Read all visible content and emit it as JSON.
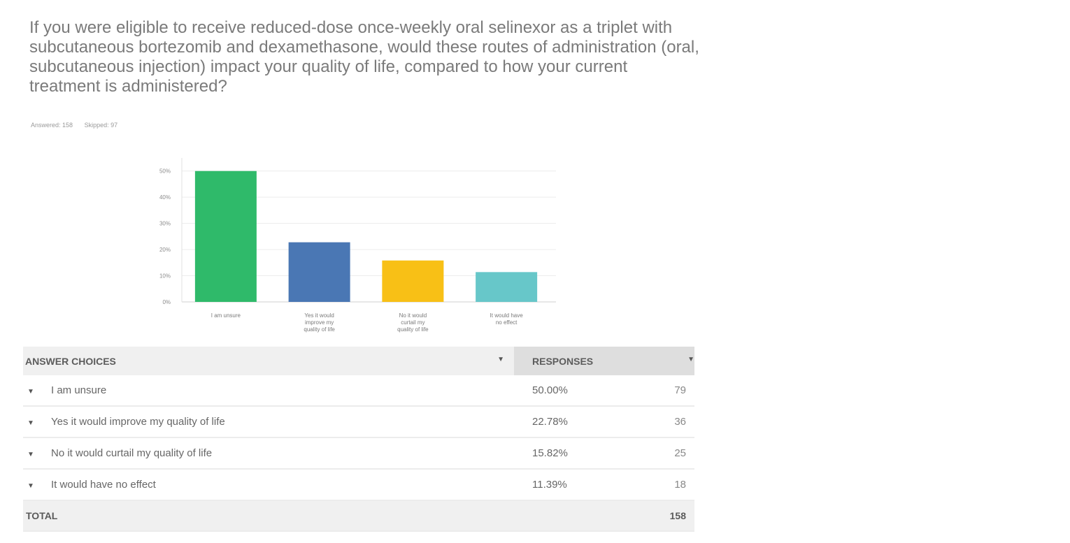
{
  "question": "If you were eligible to receive reduced-dose once-weekly oral selinexor as a triplet with subcutaneous bortezomib and dexamethasone, would these routes of administration (oral, subcutaneous injection) impact your quality of life, compared to how your current treatment is administered?",
  "meta": {
    "answered": "Answered: 158",
    "skipped": "Skipped: 97"
  },
  "colors": {
    "green": "#2fba6a",
    "blue": "#4a77b4",
    "yellow": "#f8c016",
    "teal": "#67c7c9"
  },
  "chart_data": {
    "type": "bar",
    "categories": [
      [
        "I am unsure"
      ],
      [
        "Yes it would",
        "improve my",
        "quality of life"
      ],
      [
        "No it would",
        "curtail my",
        "quality of life"
      ],
      [
        "It would have",
        "no effect"
      ]
    ],
    "values": [
      50.0,
      22.78,
      15.82,
      11.39
    ],
    "bar_colors": [
      "#2fba6a",
      "#4a77b4",
      "#f8c016",
      "#67c7c9"
    ],
    "ylim": [
      0,
      55
    ],
    "yticks": [
      0,
      10,
      20,
      30,
      40,
      50
    ],
    "ytick_labels": [
      "0%",
      "10%",
      "20%",
      "30%",
      "40%",
      "50%"
    ],
    "grid": true,
    "title": "",
    "xlabel": "",
    "ylabel": ""
  },
  "table": {
    "header": {
      "answer_choices": "ANSWER CHOICES",
      "responses": "RESPONSES"
    },
    "rows": [
      {
        "choice": "I am unsure",
        "percent": "50.00%",
        "count": "79"
      },
      {
        "choice": "Yes it would improve my quality of life",
        "percent": "22.78%",
        "count": "36"
      },
      {
        "choice": "No it would curtail my quality of life",
        "percent": "15.82%",
        "count": "25"
      },
      {
        "choice": "It would have no effect",
        "percent": "11.39%",
        "count": "18"
      }
    ],
    "total_label": "TOTAL",
    "total_value": "158"
  }
}
